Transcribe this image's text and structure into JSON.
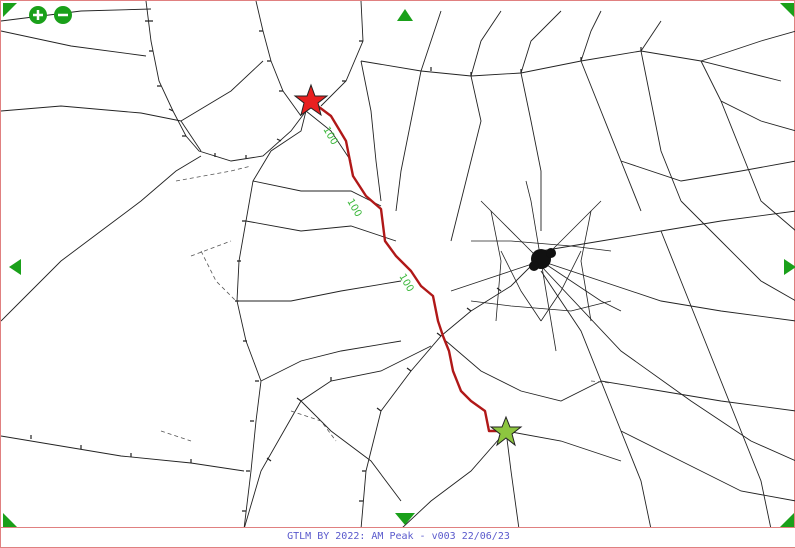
{
  "footer": {
    "caption": "GTLM BY 2022: AM Peak - v003  22/06/23"
  },
  "route": {
    "label_1": "100",
    "label_2": "100",
    "label_3": "100"
  },
  "colors": {
    "road": "#222222",
    "route": "#b01818",
    "origin_star": "#e82020",
    "destination_star": "#8dc63f",
    "nav_arrows": "#1aa01a",
    "route_label": "#3cb83c",
    "border": "#e08080"
  },
  "icons": {
    "zoom_in": "plus-circle-icon",
    "zoom_out": "minus-circle-icon",
    "pan": "triangle-arrow-icon",
    "origin": "red-star-icon",
    "destination": "green-star-icon"
  }
}
